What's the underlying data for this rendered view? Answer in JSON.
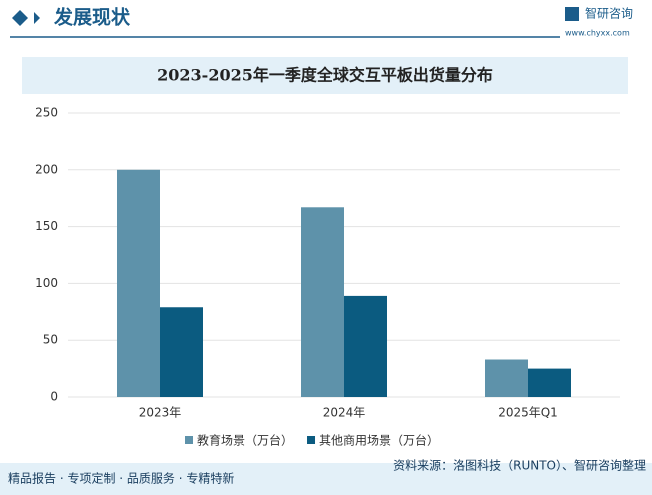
{
  "header": {
    "title": "发展现状",
    "logo": "智研咨询",
    "url": "www.chyxx.com"
  },
  "chart_data": {
    "type": "bar",
    "title": "2023-2025年一季度全球交互平板出货量分布",
    "categories": [
      "2023年",
      "2024年",
      "2025年Q1"
    ],
    "series": [
      {
        "name": "教育场景（万台）",
        "color": "#5e92aa",
        "values": [
          200,
          167,
          33
        ]
      },
      {
        "name": "其他商用场景（万台）",
        "color": "#0b5b80",
        "values": [
          79,
          89,
          25
        ]
      }
    ],
    "ylim": [
      0,
      250
    ],
    "yticks": [
      0,
      50,
      100,
      150,
      200,
      250
    ],
    "grid": true,
    "legend": "bottom"
  },
  "footer": {
    "left": "精品报告 · 专项定制 · 品质服务 · 专精特新",
    "source": "资料来源：洛图科技（RUNTO）、智研咨询整理"
  }
}
